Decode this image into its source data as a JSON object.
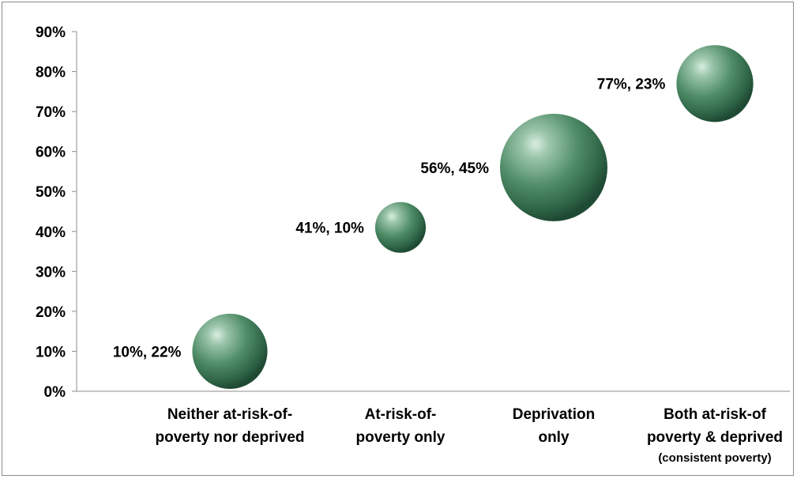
{
  "chart_data": {
    "type": "bubble",
    "categories": [
      {
        "lines": [
          "Neither at-risk-of-",
          "poverty nor deprived"
        ],
        "note": ""
      },
      {
        "lines": [
          "At-risk-of-",
          "poverty only"
        ],
        "note": ""
      },
      {
        "lines": [
          "Deprivation",
          "only"
        ],
        "note": ""
      },
      {
        "lines": [
          "Both at-risk-of",
          "poverty & deprived"
        ],
        "note": "(consistent poverty)"
      }
    ],
    "points": [
      {
        "category_index": 0,
        "y": 10,
        "size": 22,
        "label": "10%, 22%"
      },
      {
        "category_index": 1,
        "y": 41,
        "size": 10,
        "label": "41%, 10%"
      },
      {
        "category_index": 2,
        "y": 56,
        "size": 45,
        "label": "56%, 45%"
      },
      {
        "category_index": 3,
        "y": 77,
        "size": 23,
        "label": "77%, 23%"
      }
    ],
    "y_ticks": [
      "0%",
      "10%",
      "20%",
      "30%",
      "40%",
      "50%",
      "60%",
      "70%",
      "80%",
      "90%"
    ],
    "ylim": [
      0,
      90
    ],
    "bubble_color": "#3f7f5a",
    "grid": false,
    "legend": "none"
  }
}
